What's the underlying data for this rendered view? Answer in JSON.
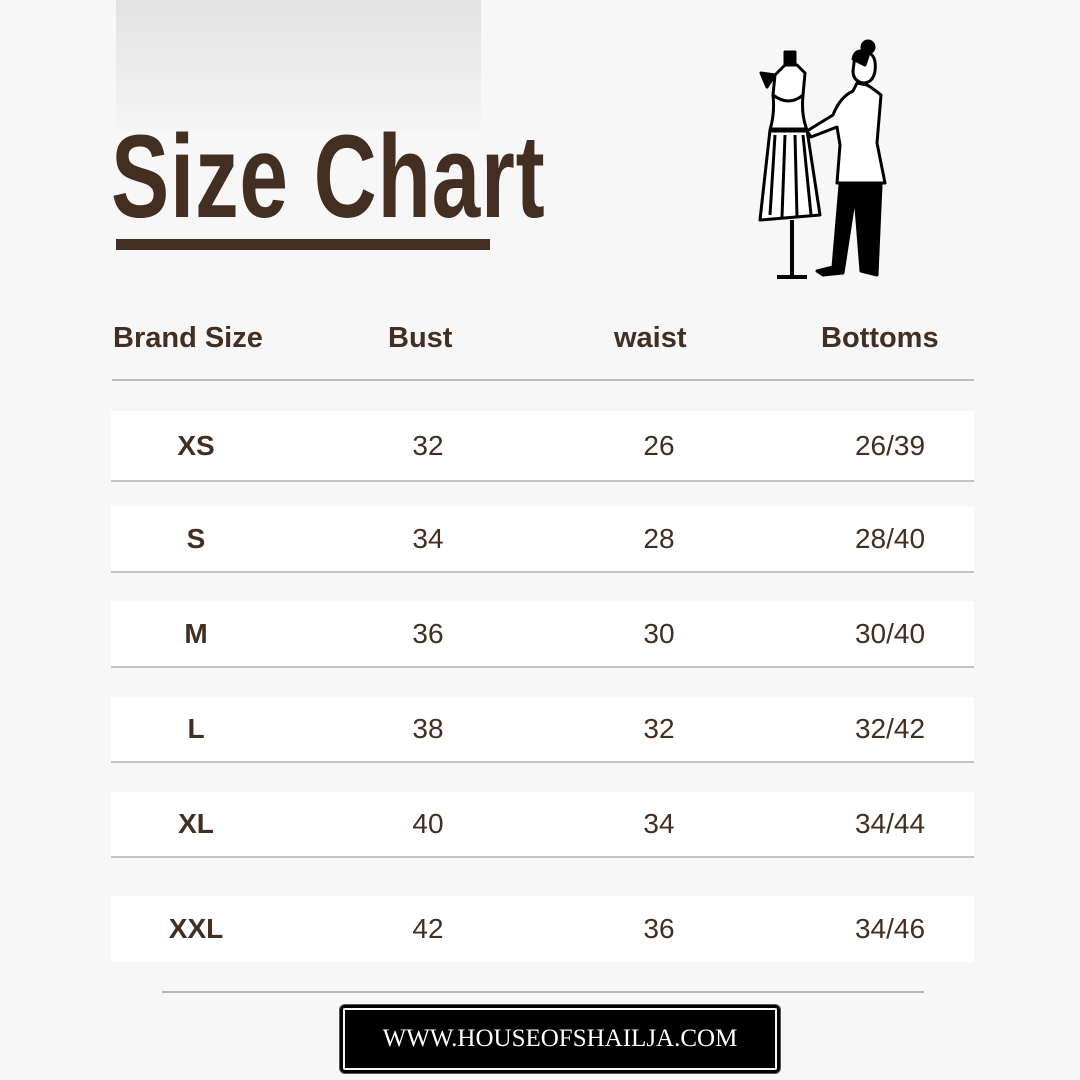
{
  "title": "Size Chart",
  "headers": [
    "Brand Size",
    "Bust",
    "waist",
    "Bottoms"
  ],
  "rows": [
    {
      "size": "XS",
      "bust": "32",
      "waist": "26",
      "bottoms": "26/39"
    },
    {
      "size": "S",
      "bust": "34",
      "waist": "28",
      "bottoms": "28/40"
    },
    {
      "size": "M",
      "bust": "36",
      "waist": "30",
      "bottoms": "30/40"
    },
    {
      "size": "L",
      "bust": "38",
      "waist": "32",
      "bottoms": "32/42"
    },
    {
      "size": "XL",
      "bust": "40",
      "waist": "34",
      "bottoms": "34/44"
    },
    {
      "size": "XXL",
      "bust": "42",
      "waist": "36",
      "bottoms": "34/46"
    }
  ],
  "website": "WWW.HOUSEOFSHAILJA.COM",
  "colors": {
    "brand": "#432e22",
    "background": "#f7f7f7"
  },
  "illustration": "tailor-with-dress-form-icon"
}
